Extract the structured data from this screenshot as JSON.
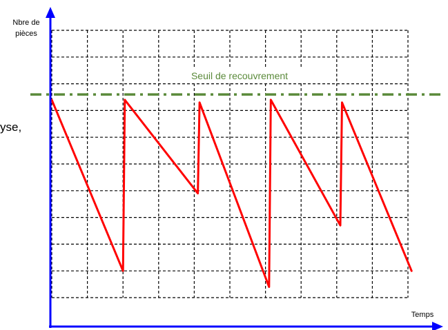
{
  "chart_data": {
    "type": "line",
    "title": "",
    "ylabel": [
      "Nbre de",
      "pièces"
    ],
    "xlabel": "Temps",
    "xlim": [
      0,
      10
    ],
    "ylim": [
      0,
      10
    ],
    "grid": true,
    "series": [
      {
        "name": "",
        "color": "#ff0000",
        "points": [
          {
            "x": 0,
            "y": 7.4
          },
          {
            "x": 2,
            "y": 1.0
          },
          {
            "x": 2.05,
            "y": 7.4
          },
          {
            "x": 4.1,
            "y": 3.9
          },
          {
            "x": 4.15,
            "y": 7.3
          },
          {
            "x": 6.1,
            "y": 0.4
          },
          {
            "x": 6.15,
            "y": 7.4
          },
          {
            "x": 8.1,
            "y": 2.7
          },
          {
            "x": 8.15,
            "y": 7.3
          },
          {
            "x": 10.1,
            "y": 1.0
          }
        ]
      }
    ],
    "annotations": [
      {
        "text": "Seuil de recouvrement",
        "y": 7.6,
        "color": "#5a8a3a"
      }
    ]
  },
  "side_text": "yse,",
  "colors": {
    "axis": "#0000ff",
    "grid": "#000000",
    "series": "#ff0000",
    "threshold": "#5a8a3a"
  }
}
